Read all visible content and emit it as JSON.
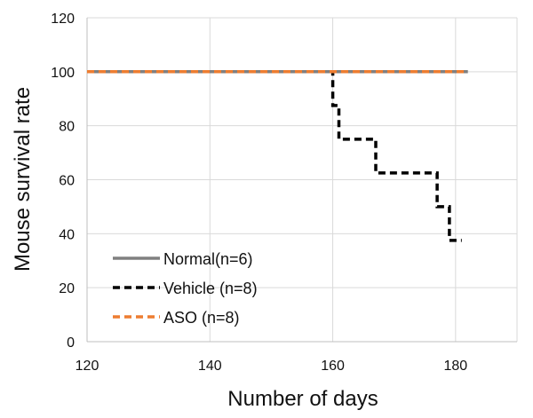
{
  "chart_data": {
    "type": "line",
    "title": "",
    "xlabel": "Number of days",
    "ylabel": "Mouse survival rate",
    "xlim": [
      120,
      190
    ],
    "ylim": [
      0,
      120
    ],
    "xticks": [
      120,
      140,
      160,
      180
    ],
    "yticks": [
      0,
      20,
      40,
      60,
      80,
      100,
      120
    ],
    "grid": true,
    "legend_position": "bottom-left",
    "series": [
      {
        "name": "Normal(n=6)",
        "color": "#808080",
        "dash": "solid",
        "step": true,
        "points": [
          [
            120,
            100
          ],
          [
            182,
            100
          ]
        ]
      },
      {
        "name": "Vehicle (n=8)",
        "color": "#000000",
        "dash": "dashed",
        "step": true,
        "points": [
          [
            120,
            100
          ],
          [
            160,
            100
          ],
          [
            160,
            87.5
          ],
          [
            161,
            87.5
          ],
          [
            161,
            75
          ],
          [
            167,
            75
          ],
          [
            167,
            62.5
          ],
          [
            177,
            62.5
          ],
          [
            177,
            50
          ],
          [
            179,
            50
          ],
          [
            179,
            37.5
          ],
          [
            181,
            37.5
          ]
        ]
      },
      {
        "name": "ASO (n=8)",
        "color": "#ED7D31",
        "dash": "dashed",
        "step": true,
        "points": [
          [
            120,
            100
          ],
          [
            182,
            100
          ]
        ]
      }
    ]
  }
}
